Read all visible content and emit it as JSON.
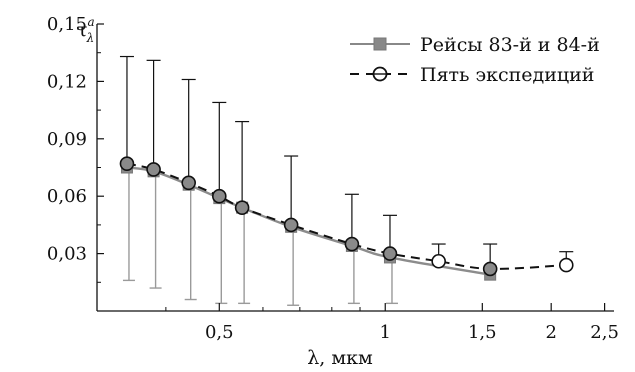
{
  "chart_data": {
    "type": "line",
    "x_scale": "log",
    "xlabel": "λ, мкм",
    "ylabel": "τ",
    "ylabel_sup": "a",
    "ylabel_sub": "λ",
    "xlim": [
      0.3,
      2.6
    ],
    "ylim": [
      0,
      0.15
    ],
    "x_ticks": [
      {
        "value": 0.5,
        "label": "0,5"
      },
      {
        "value": 1,
        "label": "1"
      },
      {
        "value": 1.5,
        "label": "1,5"
      },
      {
        "value": 2,
        "label": "2"
      },
      {
        "value": 2.5,
        "label": "2,5"
      }
    ],
    "y_ticks": [
      {
        "value": 0.03,
        "label": "0,03"
      },
      {
        "value": 0.06,
        "label": "0,06"
      },
      {
        "value": 0.09,
        "label": "0,09"
      },
      {
        "value": 0.12,
        "label": "0,12"
      },
      {
        "value": 0.15,
        "label": "0,15"
      }
    ],
    "grid": false,
    "legend_position": "top-right",
    "series": [
      {
        "name": "Рейсы 83-й и 84-й",
        "style": "solid",
        "marker": "square",
        "color": "#888888",
        "x": [
          0.34,
          0.38,
          0.44,
          0.5,
          0.55,
          0.675,
          0.87,
          1.02,
          1.55
        ],
        "y": [
          0.075,
          0.073,
          0.066,
          0.059,
          0.054,
          0.044,
          0.034,
          0.028,
          0.019
        ],
        "err_low": [
          0.016,
          0.012,
          0.006,
          0.004,
          0.004,
          0.003,
          0.004,
          0.004,
          null
        ]
      },
      {
        "name": "Пять экспедиций",
        "style": "dashed",
        "marker": "circle-open",
        "color": "#111111",
        "x": [
          0.34,
          0.38,
          0.44,
          0.5,
          0.55,
          0.675,
          0.87,
          1.02,
          1.25,
          1.55,
          2.13
        ],
        "y": [
          0.077,
          0.074,
          0.067,
          0.06,
          0.054,
          0.045,
          0.035,
          0.03,
          0.026,
          0.022,
          0.024
        ],
        "err_high": [
          0.133,
          0.131,
          0.121,
          0.109,
          0.099,
          0.081,
          0.061,
          0.05,
          0.035,
          0.035,
          0.031
        ]
      }
    ]
  }
}
